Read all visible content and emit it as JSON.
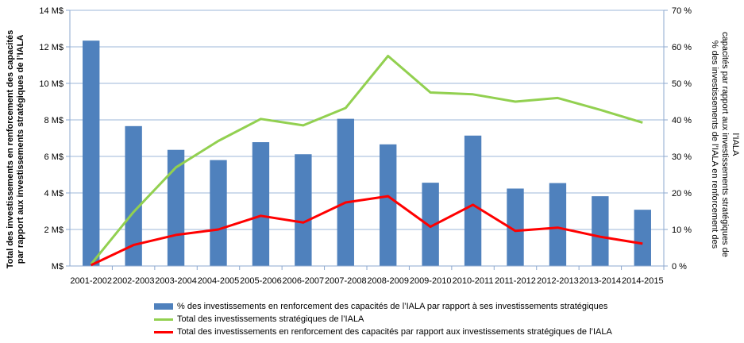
{
  "chart_data": {
    "type": "bar",
    "categories": [
      "2001-2002",
      "2002-2003",
      "2003-2004",
      "2004-2005",
      "2005-2006",
      "2006-2007",
      "2007-2008",
      "2008-2009",
      "2009-2010",
      "2010-2011",
      "2011-2012",
      "2012-2013",
      "2013-2014",
      "2014-2015"
    ],
    "left_axis": {
      "label": "Total des investissements en renforcement des capacités par rapport aux investissements stratégiques de l’IALA",
      "ylim": [
        0,
        14
      ],
      "ticks": [
        0,
        2,
        4,
        6,
        8,
        10,
        12,
        14
      ],
      "tick_labels": [
        "M$",
        "2 M$",
        "4 M$",
        "6 M$",
        "8 M$",
        "10 M$",
        "12 M$",
        "14 M$"
      ]
    },
    "right_axis": {
      "label": "% des investissements de l’IALA en renforcement des capacités par rapport aux investissements stratégiques de l’IALA",
      "ylim": [
        0,
        70
      ],
      "ticks": [
        0,
        10,
        20,
        30,
        40,
        50,
        60,
        70
      ],
      "tick_labels": [
        "0 %",
        "10 %",
        "20 %",
        "30 %",
        "40 %",
        "50 %",
        "60 %",
        "70 %"
      ]
    },
    "series": [
      {
        "name": "% des investissements en renforcement des capacités de l’IALA par rapport à ses investissements stratégiques",
        "type": "bar",
        "axis": "right",
        "color": "#4F81BD",
        "values": [
          61.7,
          38.3,
          31.8,
          29.0,
          33.9,
          30.6,
          40.3,
          33.3,
          22.8,
          35.7,
          21.2,
          22.7,
          19.1,
          15.4
        ]
      },
      {
        "name": "Total des investissements stratégiques de l’IALA",
        "type": "line",
        "axis": "left",
        "color": "#92D050",
        "values": [
          0.1,
          2.95,
          5.4,
          6.85,
          8.05,
          7.7,
          8.65,
          11.5,
          9.5,
          9.4,
          9.0,
          9.2,
          8.55,
          7.85
        ]
      },
      {
        "name": "Total des investissements en renforcement des capacités par rapport aux investissements stratégiques de l’IALA",
        "type": "line",
        "axis": "left",
        "color": "#FF0000",
        "values": [
          0.05,
          1.15,
          1.7,
          2.0,
          2.75,
          2.38,
          3.48,
          3.82,
          2.15,
          3.35,
          1.92,
          2.1,
          1.6,
          1.22
        ]
      }
    ],
    "grid": true,
    "legend_position": "bottom"
  }
}
